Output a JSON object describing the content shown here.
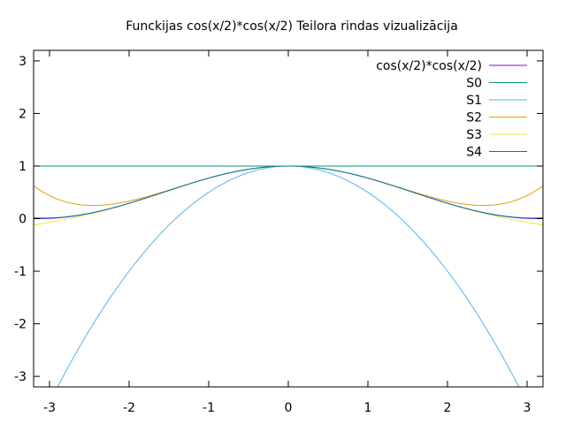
{
  "chart_data": {
    "type": "line",
    "title": "Funckijas cos(x/2)*cos(x/2) Teilora rindas vizualizācija",
    "xlabel": "",
    "ylabel": "",
    "xlim": [
      -3.2,
      3.2
    ],
    "ylim": [
      -3.2,
      3.2
    ],
    "x_ticks": [
      "-3",
      "-2",
      "-1",
      "0",
      "1",
      "2",
      "3"
    ],
    "y_ticks": [
      "3",
      "2",
      "1",
      "0",
      "-1",
      "-2",
      "-3"
    ],
    "x_tick_values": [
      -3,
      -2,
      -1,
      0,
      1,
      2,
      3
    ],
    "y_tick_values": [
      3,
      2,
      1,
      0,
      -1,
      -2,
      -3
    ],
    "grid": false,
    "legend_position": "top-right",
    "series": [
      {
        "name": "cos(x/2)*cos(x/2)",
        "color": "#9400d3",
        "function": "cos(x/2)^2"
      },
      {
        "name": "S0",
        "color": "#009e73",
        "function": "1"
      },
      {
        "name": "S1",
        "color": "#56b4e9",
        "function": "1 - x^2/2"
      },
      {
        "name": "S2",
        "color": "#e69f00",
        "function": "1 - x^2/4 + x^4/48"
      },
      {
        "name": "S3",
        "color": "#f0e442",
        "function": "1 - x^2/4 + x^4/48 - x^6/1440"
      },
      {
        "name": "S4",
        "color": "#0072b2",
        "function": "1 - x^2/4 + x^4/48 - x^6/1440 + x^8/80640"
      }
    ]
  }
}
